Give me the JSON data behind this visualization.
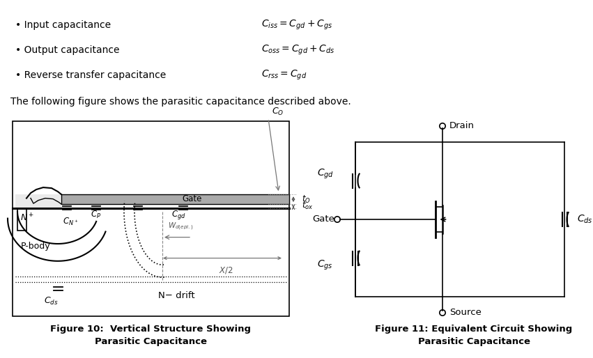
{
  "bg_color": "#ffffff",
  "text_color": "#000000",
  "fig_width": 8.51,
  "fig_height": 5.14,
  "bullet_items": [
    {
      "label": "Input capacitance",
      "formula": "$C_{iss} = C_{gd} + C_{gs}$"
    },
    {
      "label": "Output capacitance",
      "formula": "$C_{oss} = C_{gd} + C_{ds}$"
    },
    {
      "label": "Reverse transfer capacitance",
      "formula": "$C_{rss} = C_{gd}$"
    }
  ],
  "caption": "The following figure shows the parasitic capacitance described above.",
  "fig10_caption": "Figure 10:  Vertical Structure Showing\nParasitic Capacitance",
  "fig11_caption": "Figure 11: Equivalent Circuit Showing\nParasitic Capacitance"
}
